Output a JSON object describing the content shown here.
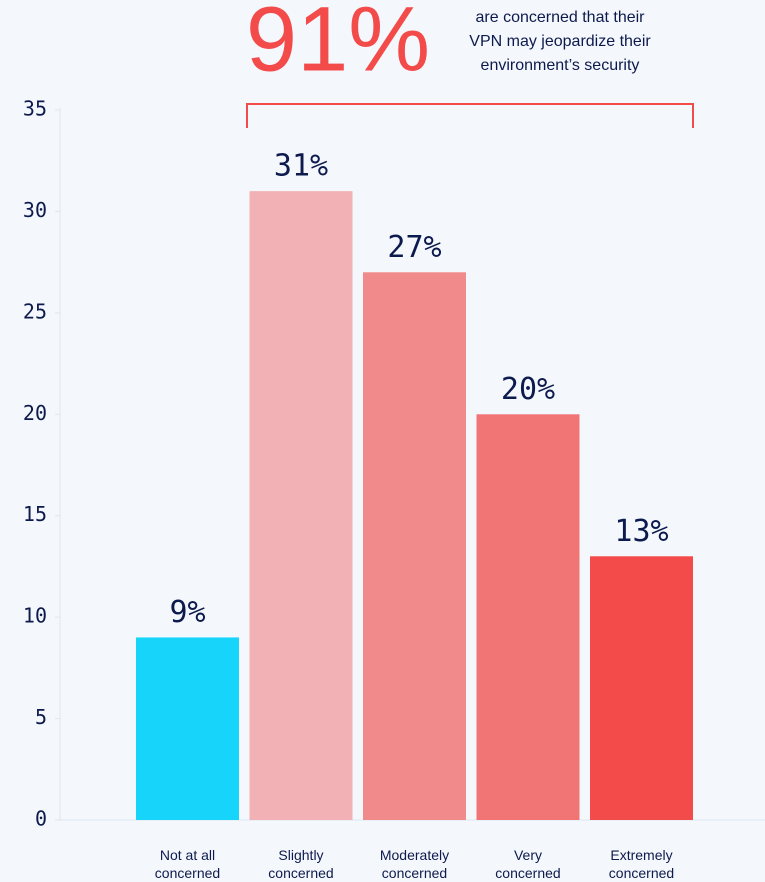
{
  "chart_data": {
    "type": "bar",
    "headline": "91%",
    "annotation_lines": [
      "are concerned that their",
      "VPN may jeopardize their",
      "environment’s security"
    ],
    "categories": [
      "Not at all concerned",
      "Slightly concerned",
      "Moderately concerned",
      "Very concerned",
      "Extremely concerned"
    ],
    "values": [
      9,
      31,
      27,
      20,
      13
    ],
    "value_labels": [
      "9%",
      "31%",
      "27%",
      "20%",
      "13%"
    ],
    "colors": [
      "#17d4fb",
      "#f2b1b4",
      "#f18a8a",
      "#f27575",
      "#f34a4a"
    ],
    "ylim": [
      0,
      35
    ],
    "yticks": [
      0,
      5,
      10,
      15,
      20,
      25,
      30,
      35
    ],
    "grid": false
  }
}
